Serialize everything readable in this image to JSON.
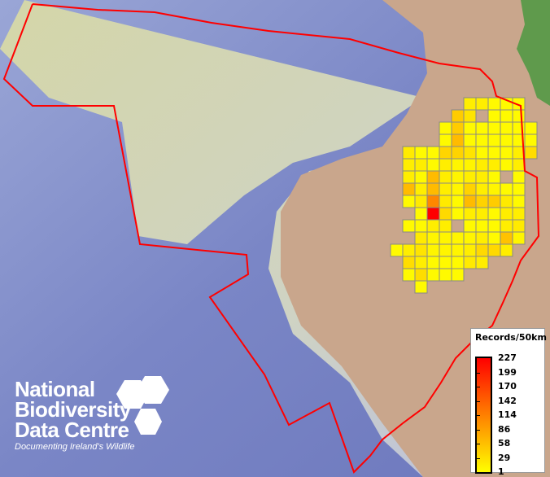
{
  "map": {
    "colors": {
      "ocean": "#7c87c8",
      "shelf": "#d9d8b4",
      "land": "#c9a68c",
      "boundary": "#ff0000",
      "grid_border": "#888888",
      "vegetation": "#5f9a4c"
    },
    "grid_rows": [
      [
        null,
        null,
        null,
        null,
        null,
        null,
        16,
        16,
        5,
        5,
        5
      ],
      [
        null,
        null,
        null,
        null,
        null,
        46,
        25,
        null,
        5,
        5,
        5
      ],
      [
        null,
        null,
        null,
        null,
        5,
        46,
        5,
        5,
        5,
        5,
        5,
        5
      ],
      [
        null,
        null,
        null,
        null,
        5,
        61,
        5,
        5,
        5,
        5,
        5,
        5
      ],
      [
        null,
        20,
        5,
        5,
        38,
        40,
        25,
        5,
        5,
        5,
        16,
        31
      ],
      [
        null,
        16,
        16,
        5,
        16,
        10,
        10,
        16,
        16,
        5,
        16
      ],
      [
        null,
        16,
        5,
        61,
        16,
        10,
        16,
        16,
        5,
        null,
        5
      ],
      [
        null,
        61,
        16,
        61,
        16,
        10,
        40,
        16,
        10,
        5,
        5
      ],
      [
        null,
        5,
        20,
        107,
        20,
        5,
        61,
        40,
        46,
        20,
        5
      ],
      [
        null,
        null,
        5,
        227,
        35,
        5,
        16,
        16,
        5,
        16,
        16
      ],
      [
        null,
        5,
        5,
        16,
        16,
        null,
        5,
        5,
        5,
        16,
        20
      ],
      [
        null,
        null,
        20,
        10,
        10,
        10,
        10,
        16,
        5,
        55,
        10
      ],
      [
        5,
        16,
        25,
        10,
        10,
        10,
        16,
        35,
        35,
        16
      ],
      [
        null,
        31,
        16,
        5,
        5,
        5,
        20,
        16
      ],
      [
        null,
        5,
        31,
        5,
        5,
        5
      ],
      [
        null,
        null,
        5
      ]
    ]
  },
  "legend": {
    "title": "Records/50km",
    "labels": [
      "227",
      "199",
      "170",
      "142",
      "114",
      "86",
      "58",
      "29",
      "1"
    ],
    "color_max": "#ff0000",
    "color_min": "#ffff00"
  },
  "logo": {
    "lines": [
      "National",
      "Biodiversity",
      "Data Centre"
    ],
    "tagline": "Documenting Ireland's Wildlife"
  }
}
